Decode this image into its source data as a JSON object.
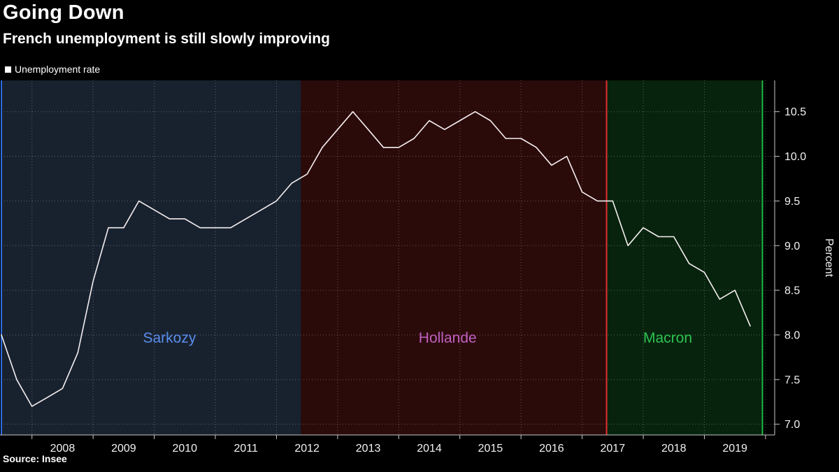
{
  "header": {
    "title": "Going Down",
    "subtitle": "French unemployment is still slowly improving"
  },
  "legend": {
    "label": "Unemployment rate",
    "swatch_color": "#ffffff"
  },
  "source": "Source: Insee",
  "chart_data": {
    "type": "line",
    "title": "Going Down",
    "subtitle": "French unemployment is still slowly improving",
    "ylabel": "Percent",
    "xlim": [
      2007.5,
      2020.15
    ],
    "ylim": [
      6.88,
      10.85
    ],
    "yticks": [
      7.0,
      7.5,
      8.0,
      8.5,
      9.0,
      9.5,
      10.0,
      10.5
    ],
    "grid_years": [
      2008,
      2009,
      2010,
      2011,
      2012,
      2013,
      2014,
      2015,
      2016,
      2017,
      2018,
      2019,
      2020
    ],
    "x_tick_labels": [
      "2008",
      "2009",
      "2010",
      "2011",
      "2012",
      "2013",
      "2014",
      "2015",
      "2016",
      "2017",
      "2018",
      "2019"
    ],
    "grid": true,
    "grid_color": "rgba(255,255,255,0.30)",
    "axis_color": "#c8c8c8",
    "text_color": "#f2f2f2",
    "legend_position": "top-left",
    "series": [
      {
        "name": "Unemployment rate",
        "color": "#f5eff0",
        "points": [
          [
            2007.5,
            8.0
          ],
          [
            2007.75,
            7.5
          ],
          [
            2008.0,
            7.2
          ],
          [
            2008.25,
            7.3
          ],
          [
            2008.5,
            7.4
          ],
          [
            2008.75,
            7.8
          ],
          [
            2009.0,
            8.6
          ],
          [
            2009.25,
            9.2
          ],
          [
            2009.5,
            9.2
          ],
          [
            2009.75,
            9.5
          ],
          [
            2010.0,
            9.4
          ],
          [
            2010.25,
            9.3
          ],
          [
            2010.5,
            9.3
          ],
          [
            2010.75,
            9.2
          ],
          [
            2011.0,
            9.2
          ],
          [
            2011.25,
            9.2
          ],
          [
            2011.5,
            9.3
          ],
          [
            2011.75,
            9.4
          ],
          [
            2012.0,
            9.5
          ],
          [
            2012.25,
            9.7
          ],
          [
            2012.5,
            9.8
          ],
          [
            2012.75,
            10.1
          ],
          [
            2013.0,
            10.3
          ],
          [
            2013.25,
            10.5
          ],
          [
            2013.5,
            10.3
          ],
          [
            2013.75,
            10.1
          ],
          [
            2014.0,
            10.1
          ],
          [
            2014.25,
            10.2
          ],
          [
            2014.5,
            10.4
          ],
          [
            2014.75,
            10.3
          ],
          [
            2015.0,
            10.4
          ],
          [
            2015.25,
            10.5
          ],
          [
            2015.5,
            10.4
          ],
          [
            2015.75,
            10.2
          ],
          [
            2016.0,
            10.2
          ],
          [
            2016.25,
            10.1
          ],
          [
            2016.5,
            9.9
          ],
          [
            2016.75,
            10.0
          ],
          [
            2017.0,
            9.6
          ],
          [
            2017.25,
            9.5
          ],
          [
            2017.5,
            9.5
          ],
          [
            2017.75,
            9.0
          ],
          [
            2018.0,
            9.2
          ],
          [
            2018.25,
            9.1
          ],
          [
            2018.5,
            9.1
          ],
          [
            2018.75,
            8.8
          ],
          [
            2019.0,
            8.7
          ],
          [
            2019.25,
            8.4
          ],
          [
            2019.5,
            8.5
          ],
          [
            2019.75,
            8.1
          ]
        ]
      }
    ],
    "regions": [
      {
        "label": "Sarkozy",
        "start": 2007.5,
        "end": 2012.4,
        "fill": "#18222f",
        "label_color": "#5b8dee",
        "label_x": 2010.25,
        "label_y": 7.97
      },
      {
        "label": "Hollande",
        "start": 2012.4,
        "end": 2017.4,
        "fill": "#2b0a0a",
        "label_color": "#c060c0",
        "label_x": 2014.8,
        "label_y": 7.97
      },
      {
        "label": "Macron",
        "start": 2017.4,
        "end": 2019.95,
        "fill": "#07230d",
        "label_color": "#2dc252",
        "label_x": 2018.4,
        "label_y": 7.97
      }
    ],
    "vlines": [
      {
        "name": "sarkozy-region-border-line",
        "x": 2007.5,
        "color": "#2f6ee3"
      },
      {
        "name": "macron-term-start-line",
        "x": 2017.4,
        "color": "#e03030"
      },
      {
        "name": "chart-end-border-line",
        "x": 2019.95,
        "color": "#1fba45"
      }
    ]
  }
}
